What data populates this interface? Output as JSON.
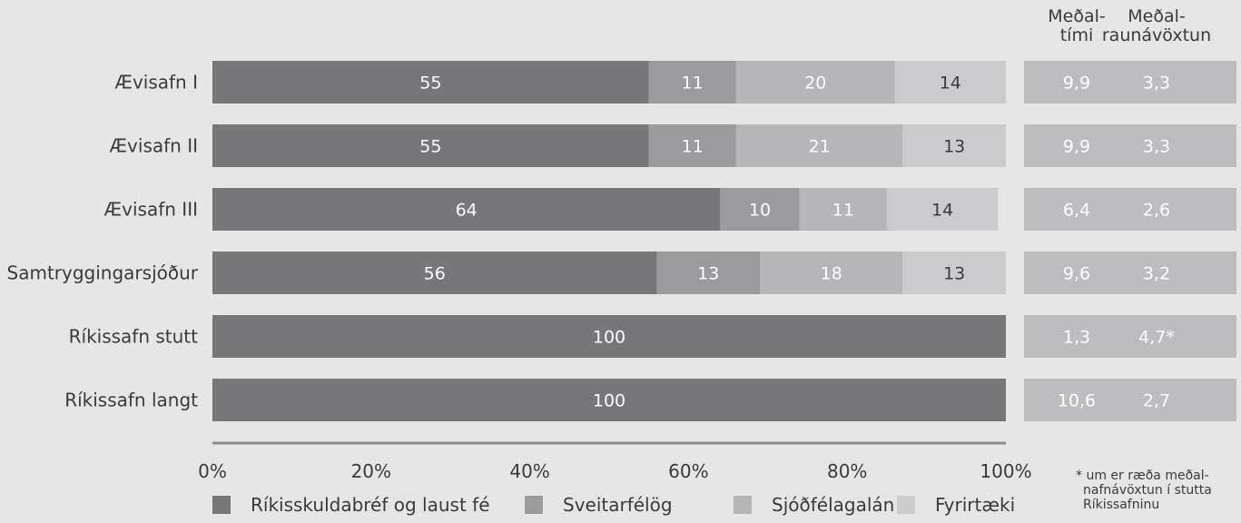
{
  "chart_data": {
    "type": "bar",
    "orientation": "horizontal",
    "stacked": true,
    "categories": [
      "Ævisafn I",
      "Ævisafn II",
      "Ævisafn III",
      "Samtryggingarsjóður",
      "Ríkissafn stutt",
      "Ríkissafn langt"
    ],
    "series": [
      {
        "name": "Ríkisskuldabréf og laust fé",
        "values": [
          55,
          55,
          64,
          56,
          100,
          100
        ],
        "color": "#77777a"
      },
      {
        "name": "Sveitarfélög",
        "values": [
          11,
          11,
          10,
          13,
          0,
          0
        ],
        "color": "#9b9b9e"
      },
      {
        "name": "Sjóðfélagalán",
        "values": [
          20,
          21,
          11,
          18,
          0,
          0
        ],
        "color": "#b6b6b8"
      },
      {
        "name": "Fyrirtæki",
        "values": [
          14,
          13,
          14,
          13,
          0,
          0
        ],
        "color": "#cbcbcd"
      }
    ],
    "x_ticks": [
      "0%",
      "20%",
      "40%",
      "60%",
      "80%",
      "100%"
    ],
    "xlim": [
      0,
      100
    ],
    "legend_position": "bottom",
    "grid": false,
    "table": {
      "headers": [
        [
          "Meðal-",
          "tími"
        ],
        [
          "Meðal-",
          "raunávöxtun"
        ]
      ],
      "rows": [
        [
          "9,9",
          "3,3"
        ],
        [
          "9,9",
          "3,3"
        ],
        [
          "6,4",
          "2,6"
        ],
        [
          "9,6",
          "3,2"
        ],
        [
          "1,3",
          "4,7*"
        ],
        [
          "10,6",
          "2,7"
        ]
      ],
      "cell_color": "#bdbdbf"
    },
    "footnote": [
      "* um er ræða meðal-",
      "nafnávöxtun í stutta",
      "Ríkissafninu"
    ]
  }
}
